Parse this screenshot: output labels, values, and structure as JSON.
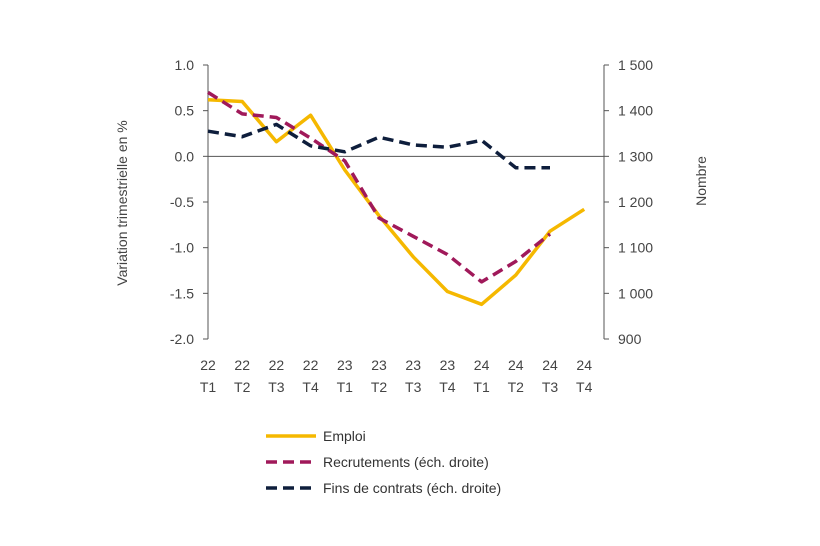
{
  "chart_data": {
    "type": "line",
    "categories": [
      [
        "22",
        "T1"
      ],
      [
        "22",
        "T2"
      ],
      [
        "22",
        "T3"
      ],
      [
        "22",
        "T4"
      ],
      [
        "23",
        "T1"
      ],
      [
        "23",
        "T2"
      ],
      [
        "23",
        "T3"
      ],
      [
        "23",
        "T4"
      ],
      [
        "24",
        "T1"
      ],
      [
        "24",
        "T2"
      ],
      [
        "24",
        "T3"
      ],
      [
        "24",
        "T4"
      ]
    ],
    "ylabel_left": "Variation trimestrielle en %",
    "ylabel_right": "Nombre",
    "ylim_left": [
      -2.0,
      1.0
    ],
    "ylim_right": [
      900,
      1500
    ],
    "yticks_left": [
      "1.0",
      "0.5",
      "0.0",
      "-0.5",
      "-1.0",
      "-1.5",
      "-2.0"
    ],
    "yticks_left_values": [
      1.0,
      0.5,
      0.0,
      -0.5,
      -1.0,
      -1.5,
      -2.0
    ],
    "yticks_right": [
      "1 500",
      "1 400",
      "1 300",
      "1 200",
      "1 100",
      "1 000",
      "900"
    ],
    "yticks_right_values": [
      1500,
      1400,
      1300,
      1200,
      1100,
      1000,
      900
    ],
    "series": [
      {
        "name": "Emploi",
        "axis": "left",
        "color": "#F5B800",
        "dash": "solid",
        "values": [
          0.62,
          0.6,
          0.16,
          0.45,
          -0.15,
          -0.65,
          -1.1,
          -1.48,
          -1.62,
          -1.3,
          -0.82,
          -0.58
        ]
      },
      {
        "name": "Recrutements (éch. droite)",
        "axis": "right",
        "color": "#A0195A",
        "dash": "dashed",
        "values": [
          1440,
          1393,
          1385,
          1340,
          1290,
          1165,
          1125,
          1085,
          1025,
          1070,
          1130,
          null
        ]
      },
      {
        "name": "Fins de contrats (éch. droite)",
        "axis": "right",
        "color": "#0E1E3C",
        "dash": "dashed",
        "values": [
          1355,
          1343,
          1370,
          1323,
          1310,
          1342,
          1325,
          1320,
          1335,
          1275,
          1275,
          null
        ]
      }
    ],
    "zero_line": true,
    "grid": false,
    "legend_position": "bottom"
  }
}
